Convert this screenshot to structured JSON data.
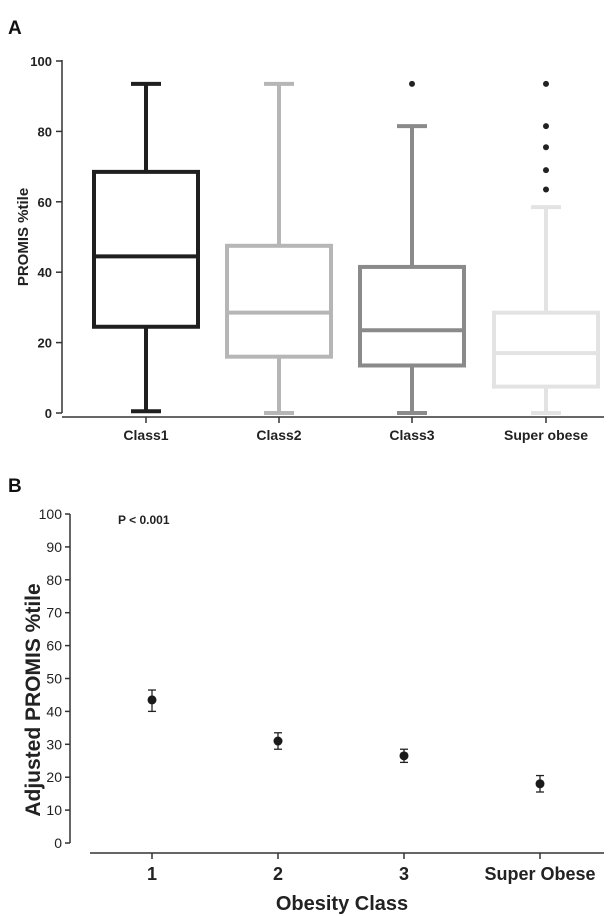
{
  "chart_data": [
    {
      "type": "box",
      "panel_label": "A",
      "ylabel": "PROMIS %tile",
      "ylim": [
        0,
        100
      ],
      "yticks": [
        0,
        20,
        40,
        60,
        80,
        100
      ],
      "categories": [
        "Class1",
        "Class2",
        "Class3",
        "Super obese"
      ],
      "series": [
        {
          "category": "Class1",
          "min": 0.5,
          "q1": 24.5,
          "median": 44.5,
          "q3": 68.5,
          "max": 93.5,
          "outliers": [],
          "color": "#1f1f1f"
        },
        {
          "category": "Class2",
          "min": 0,
          "q1": 16,
          "median": 28.5,
          "q3": 47.5,
          "max": 93.5,
          "outliers": [],
          "color": "#b6b6b6"
        },
        {
          "category": "Class3",
          "min": 0,
          "q1": 13.5,
          "median": 23.5,
          "q3": 41.5,
          "max": 81.5,
          "outliers": [
            93.5
          ],
          "color": "#8a8a8a"
        },
        {
          "category": "Super obese",
          "min": 0,
          "q1": 7.5,
          "median": 17,
          "q3": 28.5,
          "max": 58.5,
          "outliers": [
            63.5,
            69,
            75.5,
            81.5,
            93.5
          ],
          "color": "#e3e3e3"
        }
      ]
    },
    {
      "type": "scatter",
      "panel_label": "B",
      "xlabel": "Obesity Class",
      "ylabel": "Adjusted PROMIS %tile",
      "annotation": "P < 0.001",
      "ylim": [
        0,
        100
      ],
      "yticks": [
        0,
        10,
        20,
        30,
        40,
        50,
        60,
        70,
        80,
        90,
        100
      ],
      "categories": [
        "1",
        "2",
        "3",
        "Super Obese"
      ],
      "points": [
        {
          "x": "1",
          "y": 43.5,
          "err_low": 40,
          "err_high": 46.5
        },
        {
          "x": "2",
          "y": 31,
          "err_low": 28.5,
          "err_high": 33.5
        },
        {
          "x": "3",
          "y": 26.5,
          "err_low": 24.5,
          "err_high": 28.5
        },
        {
          "x": "Super Obese",
          "y": 18,
          "err_low": 15.5,
          "err_high": 20.5
        }
      ],
      "point_color": "#1a1a1a"
    }
  ]
}
